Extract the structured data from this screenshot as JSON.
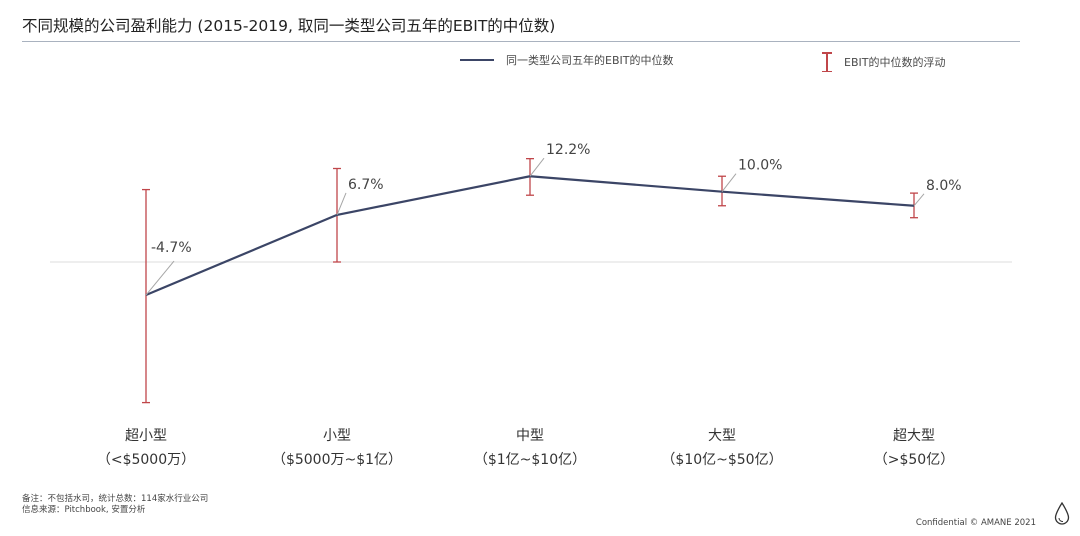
{
  "header": {
    "title": "不同规模的公司盈利能力 (2015-2019, 取同一类型公司五年的EBIT的中位数)"
  },
  "legend": {
    "line_label": "同一类型公司五年的EBIT的中位数",
    "error_label": "EBIT的中位数的浮动",
    "position": "top"
  },
  "chart_data": {
    "type": "line",
    "categories": [
      "超小型",
      "小型",
      "中型",
      "大型",
      "超大型"
    ],
    "category_sublabels": [
      "（<$5000万）",
      "（$5000万~$1亿）",
      "（$1亿~$10亿）",
      "（$10亿~$50亿）",
      "（>$50亿）"
    ],
    "series": [
      {
        "name": "同一类型公司五年的EBIT的中位数",
        "values": [
          -4.7,
          6.7,
          12.2,
          10.0,
          8.0
        ],
        "labels": [
          "-4.7%",
          "6.7%",
          "12.2%",
          "10.0%",
          "8.0%"
        ]
      }
    ],
    "error_bars": {
      "name": "EBIT的中位数的浮动",
      "low": [
        -20.0,
        0.0,
        9.5,
        8.0,
        6.3
      ],
      "high": [
        10.3,
        13.3,
        14.7,
        12.2,
        9.8
      ]
    },
    "ylim": [
      -25,
      20
    ],
    "zero_line": true,
    "grid": false,
    "colors": {
      "line": "#3b4566",
      "error": "#c0464a",
      "zero": "#dcdcdc",
      "leader": "#a6a6a6"
    }
  },
  "footer": {
    "note": "备注：不包括水司，统计总数：114家水行业公司",
    "source": "信息来源：Pitchbook, 安置分析",
    "confidential": "Confidential © AMANE 2021"
  },
  "logo": {
    "icon": "water-drop-icon"
  }
}
